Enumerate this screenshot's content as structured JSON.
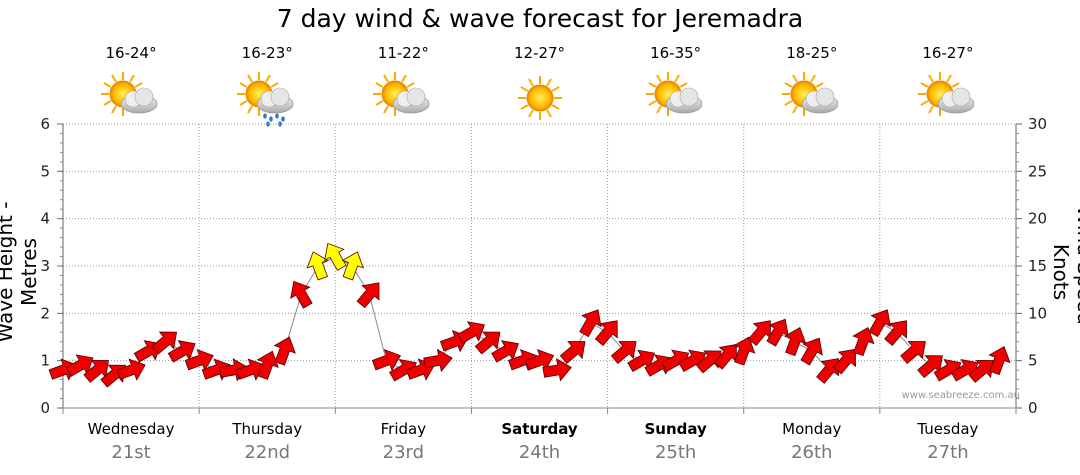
{
  "chart_data": {
    "type": "line",
    "title": "7 day wind & wave forecast for Jeremadra",
    "ylabel_left": "Wave Height - Metres",
    "ylabel_right": "Wind Speed - Knots",
    "ylim_left": [
      0,
      6
    ],
    "ylim_right": [
      0,
      30
    ],
    "yticks_left": [
      "0",
      "1",
      "2",
      "3",
      "4",
      "5",
      "6"
    ],
    "yticks_right": [
      "0",
      "5",
      "10",
      "15",
      "20",
      "25",
      "30"
    ],
    "grid": true,
    "watermark": "www.seabreeze.com.au",
    "days": [
      {
        "day": "Wednesday",
        "date": "21st",
        "temp": "16-24°",
        "icon": "partly-cloudy-icon",
        "bold": false
      },
      {
        "day": "Thursday",
        "date": "22nd",
        "temp": "16-23°",
        "icon": "cloud-rain-icon",
        "bold": false
      },
      {
        "day": "Friday",
        "date": "23rd",
        "temp": "11-22°",
        "icon": "partly-cloudy-icon",
        "bold": false
      },
      {
        "day": "Saturday",
        "date": "24th",
        "temp": "12-27°",
        "icon": "sun-icon",
        "bold": true
      },
      {
        "day": "Sunday",
        "date": "25th",
        "temp": "16-35°",
        "icon": "partly-cloudy-icon",
        "bold": true
      },
      {
        "day": "Monday",
        "date": "26th",
        "temp": "18-25°",
        "icon": "partly-cloudy-icon",
        "bold": false
      },
      {
        "day": "Tuesday",
        "date": "27th",
        "temp": "16-27°",
        "icon": "partly-cloudy-icon",
        "bold": false
      }
    ],
    "series": [
      {
        "name": "Wind Speed",
        "axis": "right",
        "x_hours": [
          0,
          3,
          6,
          9,
          12,
          15,
          18,
          21,
          24,
          27,
          30,
          33,
          36,
          39,
          42,
          45,
          48,
          51,
          54,
          57,
          60,
          63,
          66,
          69,
          72,
          75,
          78,
          81,
          84,
          87,
          90,
          93,
          96,
          99,
          102,
          105,
          108,
          111,
          114,
          117,
          120,
          123,
          126,
          129,
          132,
          135,
          138,
          141,
          144,
          147,
          150,
          153,
          156,
          159,
          162,
          165
        ],
        "values": [
          4,
          4.5,
          4,
          3.5,
          4,
          6,
          7,
          6,
          5,
          4,
          4,
          4,
          4.5,
          6,
          12,
          15,
          16,
          15,
          12,
          5,
          4,
          4,
          5,
          7,
          8,
          7,
          6,
          5,
          5,
          4,
          6,
          9,
          8,
          6,
          5,
          4.5,
          5,
          5,
          5,
          5.5,
          6,
          8,
          8,
          7,
          6,
          4,
          5,
          7,
          9,
          8,
          6,
          4.5,
          4,
          4,
          4,
          5
        ],
        "directions_deg": [
          250,
          240,
          230,
          230,
          250,
          240,
          230,
          240,
          250,
          250,
          260,
          250,
          200,
          200,
          150,
          160,
          150,
          200,
          220,
          250,
          240,
          250,
          260,
          250,
          240,
          230,
          240,
          250,
          250,
          260,
          230,
          210,
          220,
          230,
          240,
          240,
          240,
          240,
          230,
          220,
          200,
          220,
          210,
          200,
          210,
          220,
          220,
          200,
          210,
          220,
          230,
          230,
          240,
          240,
          230,
          200
        ],
        "color_threshold_knots": 14,
        "colors": {
          "normal": "#ee0000",
          "strong": "#ffff00"
        }
      }
    ]
  }
}
